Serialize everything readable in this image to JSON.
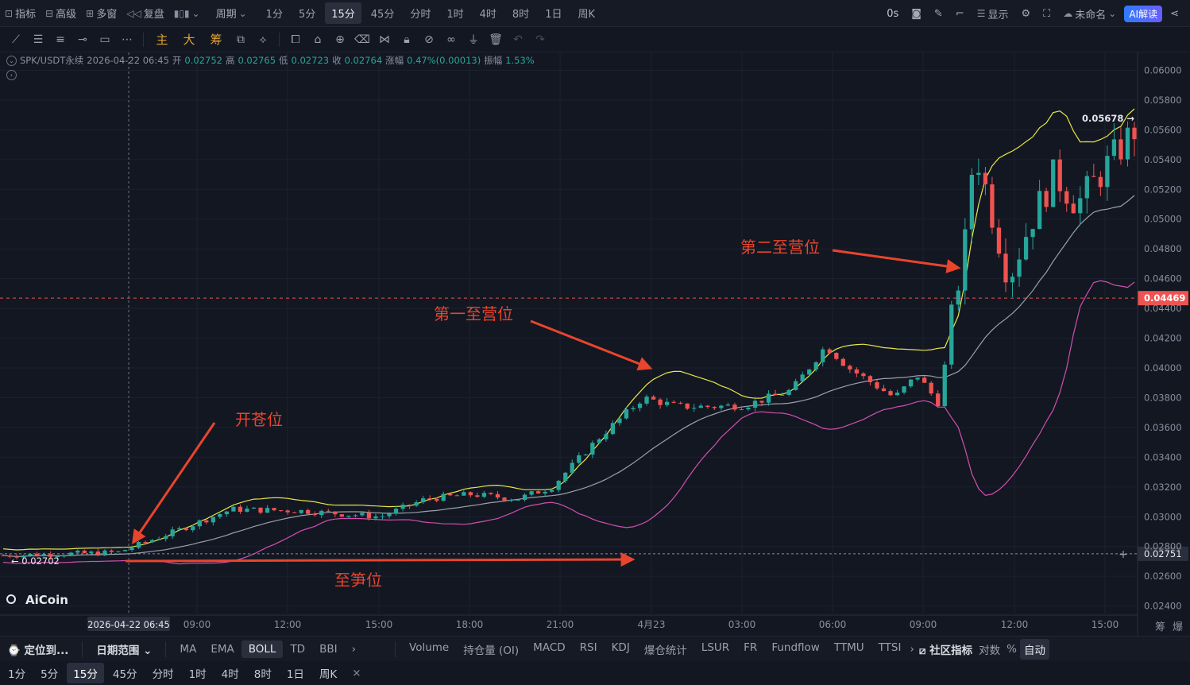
{
  "topbar": {
    "indicator": "指标",
    "advanced": "高级",
    "multi_window": "多窗",
    "replay": "复盘",
    "period_label": "周期",
    "periods": [
      "1分",
      "5分",
      "15分",
      "45分",
      "分时",
      "1时",
      "4时",
      "8时",
      "1日",
      "周K"
    ],
    "active_period": "15分",
    "countdown": "0s",
    "display": "显示",
    "untitled": "未命名",
    "ai_button": "AI解读"
  },
  "drawbar": {
    "main": "主",
    "big": "大",
    "chip": "筹"
  },
  "ohlc": {
    "symbol": "SPK/USDT永续",
    "datetime": "2026-04-22 06:45",
    "open_label": "开",
    "open": "0.02752",
    "high_label": "高",
    "high": "0.02765",
    "low_label": "低",
    "low": "0.02723",
    "close_label": "收",
    "close": "0.02764",
    "change_label": "涨幅",
    "change": "0.47%(0.00013)",
    "amp_label": "振幅",
    "amp": "1.53%"
  },
  "chart_data": {
    "type": "candlestick",
    "y_range": [
      0.0235,
      0.0612
    ],
    "y_ticks": [
      "0.06000",
      "0.05800",
      "0.05600",
      "0.05400",
      "0.05200",
      "0.05000",
      "0.04800",
      "0.04600",
      "0.04400",
      "0.04200",
      "0.04000",
      "0.03800",
      "0.03600",
      "0.03400",
      "0.03200",
      "0.03000",
      "0.02800",
      "0.02600",
      "0.02400"
    ],
    "x_ticks": [
      "09:00",
      "12:00",
      "15:00",
      "18:00",
      "21:00",
      "4月23",
      "03:00",
      "06:00",
      "09:00",
      "12:00",
      "15:00"
    ],
    "cursor_time": "2026-04-22 06:45",
    "current_price": "0.04469",
    "crosshair_price": "0.02751",
    "max_label": "0.05678 →",
    "min_label": "← 0.02702",
    "axis_footer": [
      "筹",
      "爆"
    ],
    "indicator": "BOLL",
    "annotations": [
      {
        "text": "开苍位",
        "color": "#e8452c"
      },
      {
        "text": "至笋位",
        "color": "#e8452c"
      },
      {
        "text": "第一至营位",
        "color": "#e8452c"
      },
      {
        "text": "第二至营位",
        "color": "#e8452c"
      }
    ],
    "colors": {
      "up": "#26a69a",
      "down": "#ef5350",
      "boll_upper": "#e6e649",
      "boll_mid": "#9aa0ac",
      "boll_lower": "#d24fb0",
      "price_tag": "#ef5350"
    }
  },
  "watermark": "AiCoin",
  "indbar": {
    "locate": "定位到...",
    "date_range": "日期范围",
    "main_indicators": [
      "MA",
      "EMA",
      "BOLL",
      "TD",
      "BBI"
    ],
    "active": "BOLL",
    "sub_indicators": [
      "Volume",
      "持仓量 (OI)",
      "MACD",
      "RSI",
      "KDJ",
      "爆仓统计",
      "LSUR",
      "FR",
      "Fundflow",
      "TTMU",
      "TTSI"
    ],
    "community": "社区指标",
    "log": "对数",
    "percent": "%",
    "auto": "自动"
  },
  "perbar": {
    "periods": [
      "1分",
      "5分",
      "15分",
      "45分",
      "分时",
      "1时",
      "4时",
      "8时",
      "1日",
      "周K"
    ],
    "active": "15分",
    "close": "×"
  }
}
